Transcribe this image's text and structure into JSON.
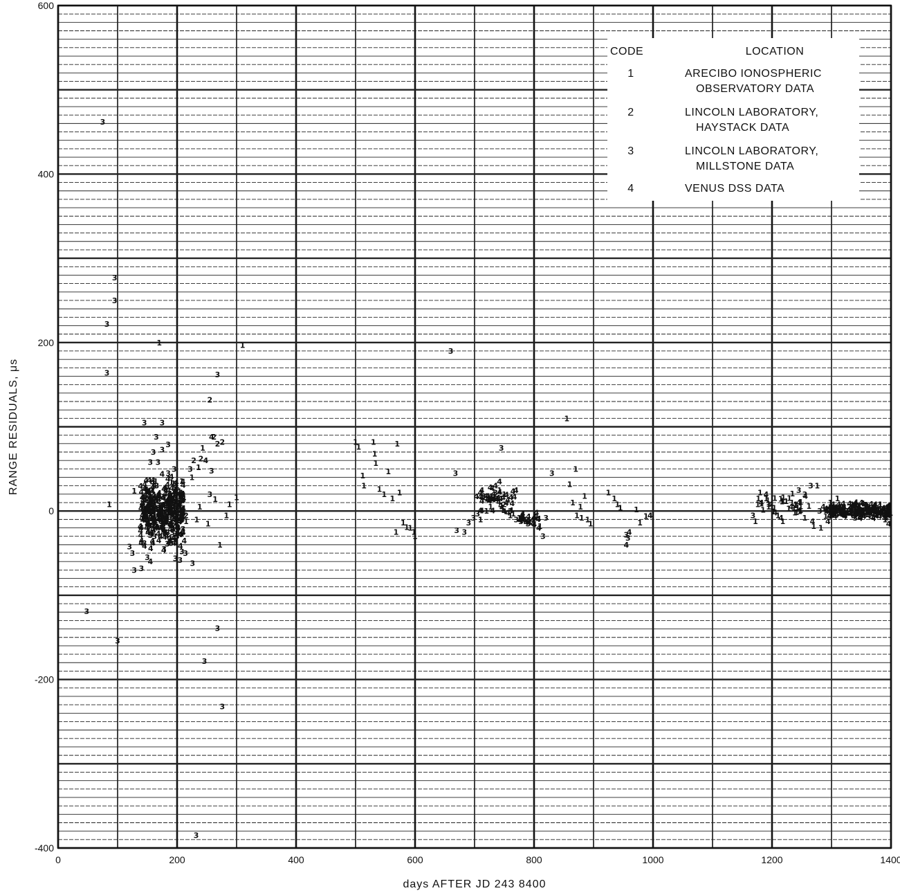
{
  "chart_data": {
    "type": "scatter",
    "title": "",
    "xlabel": "days  AFTER  JD  243  8400",
    "ylabel": "RANGE  RESIDUALS, μs",
    "xlim": [
      0,
      1400
    ],
    "ylim": [
      -400,
      600
    ],
    "x_ticks": [
      "0",
      "200",
      "400",
      "600",
      "800",
      "1000",
      "1200",
      "1400"
    ],
    "y_ticks": [
      "-400",
      "-200",
      "0",
      "200",
      "400",
      "600"
    ],
    "grid": true,
    "legend": {
      "position": "top-right",
      "header": {
        "code": "CODE",
        "location": "LOCATION"
      },
      "entries": [
        {
          "code": "1",
          "lines": [
            "ARECIBO IONOSPHERIC",
            "OBSERVATORY DATA"
          ]
        },
        {
          "code": "2",
          "lines": [
            "LINCOLN LABORATORY,",
            "HAYSTACK DATA"
          ]
        },
        {
          "code": "3",
          "lines": [
            "LINCOLN LABORATORY,",
            "MILLSTONE DATA"
          ]
        },
        {
          "code": "4",
          "lines": [
            "VENUS DSS DATA"
          ]
        }
      ]
    },
    "series": [
      {
        "name": "1",
        "points": [
          [
            86,
            8
          ],
          [
            128,
            24
          ],
          [
            170,
            200
          ],
          [
            165,
            13
          ],
          [
            148,
            -10
          ],
          [
            158,
            25
          ],
          [
            173,
            -8
          ],
          [
            185,
            4
          ],
          [
            193,
            -20
          ],
          [
            200,
            30
          ],
          [
            203,
            10
          ],
          [
            208,
            -5
          ],
          [
            215,
            -12
          ],
          [
            225,
            40
          ],
          [
            233,
            -10
          ],
          [
            236,
            52
          ],
          [
            238,
            5
          ],
          [
            243,
            75
          ],
          [
            252,
            -15
          ],
          [
            264,
            14
          ],
          [
            272,
            -40
          ],
          [
            283,
            -5
          ],
          [
            288,
            8
          ],
          [
            300,
            16
          ],
          [
            310,
            197
          ],
          [
            500,
            82
          ],
          [
            505,
            76
          ],
          [
            512,
            42
          ],
          [
            514,
            30
          ],
          [
            530,
            82
          ],
          [
            532,
            68
          ],
          [
            534,
            57
          ],
          [
            540,
            26
          ],
          [
            548,
            20
          ],
          [
            555,
            47
          ],
          [
            562,
            15
          ],
          [
            568,
            -25
          ],
          [
            570,
            80
          ],
          [
            574,
            22
          ],
          [
            580,
            -14
          ],
          [
            586,
            -19
          ],
          [
            592,
            -20
          ],
          [
            598,
            -25
          ],
          [
            600,
            -30
          ],
          [
            710,
            -10
          ],
          [
            720,
            0
          ],
          [
            727,
            5
          ],
          [
            738,
            15
          ],
          [
            742,
            25
          ],
          [
            750,
            20
          ],
          [
            760,
            -5
          ],
          [
            765,
            -3
          ],
          [
            775,
            -8
          ],
          [
            785,
            -10
          ],
          [
            800,
            -15
          ],
          [
            810,
            -18
          ],
          [
            855,
            110
          ],
          [
            860,
            32
          ],
          [
            865,
            10
          ],
          [
            870,
            50
          ],
          [
            872,
            -5
          ],
          [
            878,
            5
          ],
          [
            880,
            -8
          ],
          [
            885,
            18
          ],
          [
            890,
            -10
          ],
          [
            895,
            -15
          ],
          [
            925,
            22
          ],
          [
            935,
            15
          ],
          [
            940,
            8
          ],
          [
            945,
            4
          ],
          [
            972,
            2
          ],
          [
            978,
            -14
          ],
          [
            988,
            -6
          ],
          [
            1172,
            -12
          ],
          [
            1176,
            8
          ],
          [
            1180,
            22
          ],
          [
            1190,
            15
          ],
          [
            1200,
            5
          ],
          [
            1210,
            -5
          ],
          [
            1218,
            -12
          ],
          [
            1228,
            3
          ],
          [
            1240,
            8
          ],
          [
            1248,
            1
          ],
          [
            1255,
            -8
          ],
          [
            1262,
            6
          ],
          [
            1270,
            -18
          ],
          [
            1276,
            30
          ],
          [
            1282,
            -20
          ],
          [
            1290,
            -6
          ],
          [
            1298,
            10
          ],
          [
            1310,
            15
          ],
          [
            1318,
            5
          ],
          [
            1326,
            0
          ],
          [
            1335,
            8
          ],
          [
            1344,
            3
          ],
          [
            1352,
            -2
          ],
          [
            1360,
            6
          ],
          [
            1368,
            2
          ],
          [
            1375,
            -4
          ],
          [
            1382,
            8
          ],
          [
            1390,
            -10
          ]
        ]
      },
      {
        "name": "2",
        "points": [
          [
            255,
            132
          ],
          [
            262,
            88
          ],
          [
            268,
            80
          ],
          [
            276,
            82
          ],
          [
            228,
            60
          ],
          [
            240,
            62
          ],
          [
            210,
            -25
          ],
          [
            215,
            -5
          ],
          [
            750,
            8
          ],
          [
            1305,
            0
          ],
          [
            1330,
            5
          ],
          [
            1358,
            -3
          ]
        ]
      },
      {
        "name": "3",
        "points": [
          [
            75,
            462
          ],
          [
            95,
            277
          ],
          [
            95,
            250
          ],
          [
            82,
            222
          ],
          [
            82,
            164
          ],
          [
            48,
            -119
          ],
          [
            100,
            -154
          ],
          [
            120,
            -42
          ],
          [
            125,
            -50
          ],
          [
            128,
            -70
          ],
          [
            140,
            -68
          ],
          [
            145,
            105
          ],
          [
            145,
            -38
          ],
          [
            150,
            -55
          ],
          [
            155,
            58
          ],
          [
            160,
            70
          ],
          [
            162,
            -30
          ],
          [
            165,
            88
          ],
          [
            168,
            58
          ],
          [
            175,
            105
          ],
          [
            175,
            73
          ],
          [
            178,
            -45
          ],
          [
            185,
            79
          ],
          [
            185,
            45
          ],
          [
            190,
            -38
          ],
          [
            195,
            50
          ],
          [
            197,
            -56
          ],
          [
            200,
            -30
          ],
          [
            205,
            -58
          ],
          [
            208,
            -48
          ],
          [
            214,
            -50
          ],
          [
            222,
            50
          ],
          [
            226,
            -62
          ],
          [
            232,
            -385
          ],
          [
            246,
            -178
          ],
          [
            255,
            20
          ],
          [
            258,
            48
          ],
          [
            268,
            -139
          ],
          [
            268,
            162
          ],
          [
            276,
            -232
          ],
          [
            660,
            190
          ],
          [
            668,
            45
          ],
          [
            670,
            -23
          ],
          [
            683,
            -25
          ],
          [
            690,
            -14
          ],
          [
            698,
            -8
          ],
          [
            705,
            -3
          ],
          [
            715,
            18
          ],
          [
            735,
            22
          ],
          [
            745,
            75
          ],
          [
            760,
            0
          ],
          [
            770,
            -10
          ],
          [
            778,
            -12
          ],
          [
            790,
            -15
          ],
          [
            815,
            -30
          ],
          [
            820,
            -8
          ],
          [
            830,
            45
          ],
          [
            955,
            -28
          ],
          [
            958,
            -32
          ],
          [
            1168,
            -5
          ],
          [
            1245,
            25
          ],
          [
            1255,
            20
          ],
          [
            1265,
            30
          ],
          [
            1280,
            0
          ],
          [
            1300,
            -5
          ],
          [
            1320,
            -2
          ],
          [
            1340,
            -8
          ],
          [
            1355,
            4
          ]
        ]
      },
      {
        "name": "4",
        "points": [
          [
            140,
            -35
          ],
          [
            150,
            -15
          ],
          [
            155,
            -60
          ],
          [
            168,
            -20
          ],
          [
            172,
            -30
          ],
          [
            180,
            -25
          ],
          [
            188,
            -15
          ],
          [
            195,
            -10
          ],
          [
            198,
            20
          ],
          [
            202,
            -20
          ],
          [
            205,
            -10
          ],
          [
            212,
            -35
          ],
          [
            248,
            60
          ],
          [
            258,
            88
          ],
          [
            725,
            12
          ],
          [
            735,
            30
          ],
          [
            742,
            35
          ],
          [
            748,
            16
          ],
          [
            756,
            -2
          ],
          [
            780,
            -5
          ],
          [
            790,
            -12
          ],
          [
            800,
            -8
          ],
          [
            808,
            -20
          ],
          [
            955,
            -40
          ],
          [
            960,
            -25
          ],
          [
            995,
            -5
          ],
          [
            1182,
            10
          ],
          [
            1190,
            20
          ],
          [
            1198,
            8
          ],
          [
            1205,
            -2
          ],
          [
            1215,
            -8
          ],
          [
            1232,
            5
          ],
          [
            1245,
            10
          ],
          [
            1256,
            18
          ],
          [
            1268,
            -12
          ],
          [
            1286,
            5
          ],
          [
            1294,
            -12
          ],
          [
            1300,
            2
          ],
          [
            1312,
            8
          ],
          [
            1322,
            -6
          ],
          [
            1332,
            4
          ],
          [
            1342,
            -3
          ],
          [
            1350,
            10
          ],
          [
            1362,
            -5
          ],
          [
            1372,
            6
          ],
          [
            1380,
            -2
          ],
          [
            1392,
            -8
          ],
          [
            1396,
            -15
          ]
        ]
      }
    ],
    "dense_clusters": [
      {
        "series": "4",
        "x_range": [
          138,
          212
        ],
        "y_range": [
          -55,
          55
        ],
        "count": 260
      },
      {
        "series": "3",
        "x_range": [
          150,
          212
        ],
        "y_range": [
          -45,
          40
        ],
        "count": 60
      },
      {
        "series": "1",
        "x_range": [
          140,
          210
        ],
        "y_range": [
          -30,
          50
        ],
        "count": 40
      },
      {
        "series": "4",
        "x_range": [
          700,
          770
        ],
        "y_range": [
          -5,
          35
        ],
        "count": 40
      },
      {
        "series": "4",
        "x_range": [
          775,
          810
        ],
        "y_range": [
          -18,
          0
        ],
        "count": 20
      },
      {
        "series": "4",
        "x_range": [
          1290,
          1400
        ],
        "y_range": [
          -12,
          12
        ],
        "count": 180
      },
      {
        "series": "1",
        "x_range": [
          1175,
          1250
        ],
        "y_range": [
          -10,
          25
        ],
        "count": 25
      }
    ]
  }
}
